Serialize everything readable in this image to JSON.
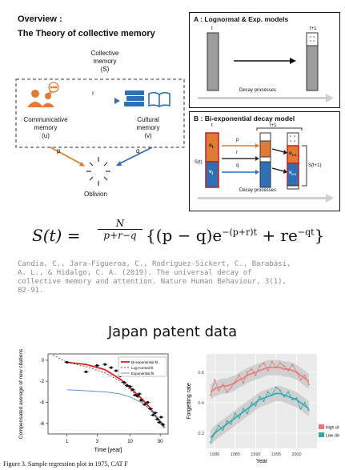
{
  "overview": {
    "title": "Overview :",
    "subtitle": "The Theory of collective memory",
    "collective_line1": "Collective",
    "collective_line2": "memory",
    "collective_var": "(S)",
    "comm_line1": "Communicative",
    "comm_line2": "memory",
    "comm_var": "(u)",
    "cult_line1": "Cultural",
    "cult_line2": "memory",
    "cult_var": "(v)",
    "r_label": "r",
    "p_label": "p",
    "q_label": "q",
    "oblivion": "Oblivion",
    "colors": {
      "orange": "#e07b33",
      "blue": "#2f6fb3",
      "gray": "#b0b0b0"
    },
    "icons": [
      "people-icon",
      "speech-bubble-icon",
      "book-stack-icon",
      "open-book-icon"
    ]
  },
  "panel_a": {
    "title": "A : Lognormal & Exp. models",
    "t": "t",
    "t1": "t+1",
    "decay": "Decay processes"
  },
  "panel_b": {
    "title": "B : Bi-exponential decay model",
    "t": "t",
    "t1": "t+1",
    "u_t": "u",
    "u_sub": "t",
    "v_t": "v",
    "v_sub": "t",
    "u_t1": "u",
    "u_t1_sub": "t+1",
    "v_t1": "v",
    "v_t1_sub": "t+1",
    "s_t": "S(t)",
    "s_t1": "S(t+1)",
    "p": "p",
    "r": "r",
    "q": "q",
    "decay": "Decay processes"
  },
  "formula": {
    "lhs": "S(t) =",
    "num": "N",
    "den": "p+r−q",
    "rhs": "{(p − q)e",
    "exp1": "−(p+r)t",
    "mid": " + re",
    "exp2": "−qt",
    "end": "}"
  },
  "citation": {
    "line1": "Candia, C., Jara-Figueroa, C., Rodriguez-Sickert, C., Barabási,",
    "line2": "A. L., & Hidalgo, C. A. (2019). The universal decay of",
    "line3": "collective memory and attention. Nature Human Behaviour, 3(1),",
    "line4": "82-91."
  },
  "section_title": "Japan patent data",
  "caption": "Figure 3.  Sample regression plot in 1975, CAT F",
  "chart_data": [
    {
      "type": "scatter",
      "title": "",
      "xlabel": "Time [year]",
      "ylabel": "Compensated average of new citations",
      "x_scale": "log",
      "xticks": [
        "1",
        "3",
        "10",
        "30"
      ],
      "yticks": [
        "0",
        "-2",
        "-4",
        "-6"
      ],
      "legend": [
        "Bi-exponential fit",
        "Log-normal fit",
        "Exponential fit"
      ],
      "legend_position": "top-right",
      "colors": {
        "bi": "#e02020",
        "log": "#555555",
        "exp": "#6a8fe0"
      },
      "x": [
        1,
        2,
        3,
        4,
        5,
        6,
        7,
        8,
        9,
        10,
        11,
        12,
        13,
        14,
        15,
        17,
        19,
        21,
        23,
        25,
        27,
        29,
        31,
        33
      ],
      "y": [
        -0.2,
        -1.1,
        -0.5,
        -0.4,
        -0.7,
        -1.0,
        -1.5,
        -2.1,
        -2.4,
        -2.5,
        -2.8,
        -3.3,
        -3.4,
        -3.2,
        -3.8,
        -4.2,
        -4.0,
        -4.6,
        -5.2,
        -5.0,
        -5.6,
        -5.9,
        -5.4,
        -6.1
      ],
      "series": [
        {
          "name": "Bi-exponential fit",
          "x": [
            1,
            2,
            4,
            7,
            10,
            15,
            20,
            27,
            35
          ],
          "values": [
            -0.2,
            -0.4,
            -0.9,
            -1.8,
            -2.6,
            -3.6,
            -4.4,
            -5.5,
            -6.4
          ]
        },
        {
          "name": "Log-normal fit",
          "x": [
            0.6,
            1,
            2,
            4,
            7,
            10,
            15,
            20,
            27,
            35
          ],
          "values": [
            0.5,
            -0.2,
            -0.6,
            -1.2,
            -2.0,
            -2.8,
            -3.8,
            -4.6,
            -5.6,
            -6.3
          ]
        },
        {
          "name": "Exponential fit",
          "x": [
            1,
            2,
            4,
            7,
            10,
            15,
            20,
            27,
            35
          ],
          "values": [
            -2.8,
            -2.9,
            -3.0,
            -3.2,
            -3.5,
            -4.0,
            -4.6,
            -5.4,
            -6.2
          ]
        }
      ],
      "ylim": [
        -7,
        0.6
      ],
      "xlim": [
        0.5,
        40
      ]
    },
    {
      "type": "line",
      "title": "",
      "xlabel": "Year",
      "ylabel": "Forgetting rate",
      "xticks": [
        "1980",
        "1985",
        "1990",
        "1995",
        "2000"
      ],
      "yticks": [
        "0.2",
        "0.4",
        "0.6"
      ],
      "legend": [
        "High cited",
        "Low cited"
      ],
      "legend_position": "bottom-right",
      "colors": {
        "high": "#e87878",
        "low": "#2fa8b0",
        "band": "#bdbdbd"
      },
      "x": [
        1979,
        1980,
        1981,
        1982,
        1983,
        1984,
        1985,
        1986,
        1987,
        1988,
        1989,
        1990,
        1991,
        1992,
        1993,
        1994,
        1995,
        1996,
        1997,
        1998,
        1999,
        2000,
        2001,
        2002,
        2003
      ],
      "series": [
        {
          "name": "High cited",
          "values": [
            0.45,
            0.55,
            0.48,
            0.52,
            0.47,
            0.5,
            0.54,
            0.58,
            0.53,
            0.6,
            0.62,
            0.58,
            0.64,
            0.66,
            0.61,
            0.67,
            0.63,
            0.66,
            0.64,
            0.61,
            0.65,
            0.6,
            0.55,
            0.58,
            0.52
          ]
        },
        {
          "name": "Low cited",
          "values": [
            0.14,
            0.2,
            0.25,
            0.22,
            0.28,
            0.26,
            0.33,
            0.3,
            0.36,
            0.33,
            0.4,
            0.38,
            0.44,
            0.41,
            0.47,
            0.45,
            0.5,
            0.48,
            0.44,
            0.47,
            0.42,
            0.43,
            0.36,
            0.4,
            0.35
          ]
        },
        {
          "name": "High cited trend",
          "values": [
            0.47,
            0.49,
            0.5,
            0.51,
            0.51,
            0.52,
            0.53,
            0.55,
            0.56,
            0.58,
            0.59,
            0.6,
            0.61,
            0.62,
            0.63,
            0.63,
            0.63,
            0.63,
            0.62,
            0.62,
            0.61,
            0.6,
            0.58,
            0.56,
            0.54
          ]
        },
        {
          "name": "Low cited trend",
          "values": [
            0.17,
            0.2,
            0.22,
            0.24,
            0.26,
            0.28,
            0.3,
            0.32,
            0.34,
            0.36,
            0.38,
            0.4,
            0.42,
            0.43,
            0.44,
            0.45,
            0.46,
            0.46,
            0.45,
            0.44,
            0.43,
            0.42,
            0.4,
            0.38,
            0.36
          ]
        }
      ],
      "ylim": [
        0.1,
        0.72
      ],
      "xlim": [
        1978,
        2005
      ]
    }
  ]
}
